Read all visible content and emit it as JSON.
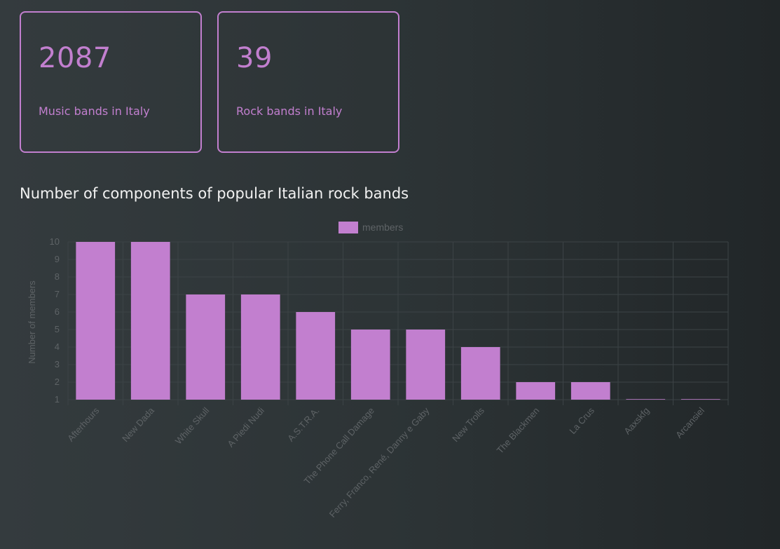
{
  "stats": [
    {
      "value": "2087",
      "label": "Music bands in Italy"
    },
    {
      "value": "39",
      "label": "Rock bands in Italy"
    }
  ],
  "chart_title": "Number of components of popular Italian rock bands",
  "colors": {
    "accent": "#c27fcf",
    "axis_text": "#5e6366",
    "grid": "#3c4346"
  },
  "chart_data": {
    "type": "bar",
    "categories": [
      "Afterhours",
      "New Dada",
      "White Skull",
      "A Piedi Nudi",
      "A.S.T.R.A.",
      "The Phone Call Damage",
      "Ferry, Franco, René, Danny e Gaby",
      "New Trolls",
      "The Blackmen",
      "La Crus",
      "Aaxskfg",
      "Arcansiel"
    ],
    "series": [
      {
        "name": "members",
        "values": [
          10,
          10,
          7,
          7,
          6,
          5,
          5,
          4,
          2,
          2,
          1,
          1
        ]
      }
    ],
    "ylabel": "Number of members",
    "ylim": [
      1,
      10
    ],
    "yticks": [
      "1",
      "2",
      "3",
      "4",
      "5",
      "6",
      "7",
      "8",
      "9",
      "10"
    ],
    "legend": "top-center",
    "grid": true
  }
}
